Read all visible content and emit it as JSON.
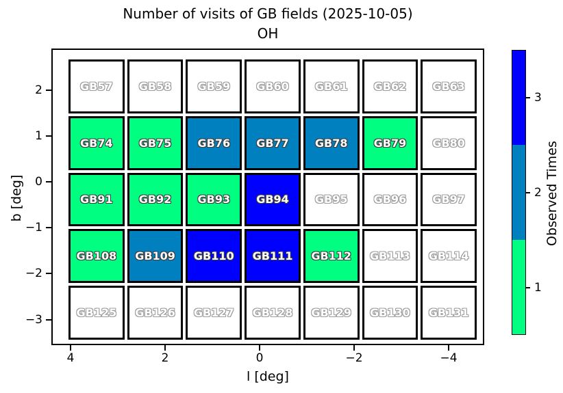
{
  "title": {
    "line1": "Number of visits of GB fields (2025-10-05)",
    "line2": "OH"
  },
  "chart_data": {
    "type": "heatmap",
    "title": "Number of visits of GB fields (2025-10-05)",
    "subtitle": "OH",
    "xlabel": "l [deg]",
    "ylabel": "b [deg]",
    "x_tick_labels": [
      "4",
      "2",
      "0",
      "−2",
      "−4"
    ],
    "x_tick_values": [
      4,
      2,
      0,
      -2,
      -4
    ],
    "x_axis_reversed": true,
    "x_range": [
      4.4,
      -4.8
    ],
    "y_tick_labels": [
      "2",
      "1",
      "0",
      "−1",
      "−2",
      "−3"
    ],
    "y_tick_values": [
      2,
      1,
      0,
      -1,
      -2,
      -3
    ],
    "y_range": [
      2.9,
      -3.55
    ],
    "grid": "off",
    "field_size_deg": 1.2,
    "column_l_centers": [
      3.6,
      2.4,
      1.2,
      0.0,
      -1.2,
      -2.4,
      -3.6
    ],
    "row_b_centers": [
      2.0,
      0.8,
      -0.4,
      -1.6,
      -2.8
    ],
    "value_colors": {
      "0": "#FFFFFF",
      "1": "#00FF80",
      "2": "#0080BF",
      "3": "#0000FF"
    },
    "rows": [
      {
        "fields": [
          "GB57",
          "GB58",
          "GB59",
          "GB60",
          "GB61",
          "GB62",
          "GB63"
        ],
        "visits": [
          0,
          0,
          0,
          0,
          0,
          0,
          0
        ]
      },
      {
        "fields": [
          "GB74",
          "GB75",
          "GB76",
          "GB77",
          "GB78",
          "GB79",
          "GB80"
        ],
        "visits": [
          1,
          1,
          2,
          2,
          2,
          1,
          0
        ]
      },
      {
        "fields": [
          "GB91",
          "GB92",
          "GB93",
          "GB94",
          "GB95",
          "GB96",
          "GB97"
        ],
        "visits": [
          1,
          1,
          1,
          3,
          0,
          0,
          0
        ]
      },
      {
        "fields": [
          "GB108",
          "GB109",
          "GB110",
          "GB111",
          "GB112",
          "GB113",
          "GB114"
        ],
        "visits": [
          1,
          2,
          3,
          3,
          1,
          0,
          0
        ]
      },
      {
        "fields": [
          "GB125",
          "GB126",
          "GB127",
          "GB128",
          "GB129",
          "GB130",
          "GB131"
        ],
        "visits": [
          0,
          0,
          0,
          0,
          0,
          0,
          0
        ]
      }
    ],
    "colorbar": {
      "label": "Observed Times",
      "tick_labels_top_to_bottom": [
        "3",
        "2",
        "1"
      ],
      "segment_colors_top_to_bottom": [
        "#0000FF",
        "#0080BF",
        "#00FF80"
      ],
      "position": "right"
    }
  }
}
